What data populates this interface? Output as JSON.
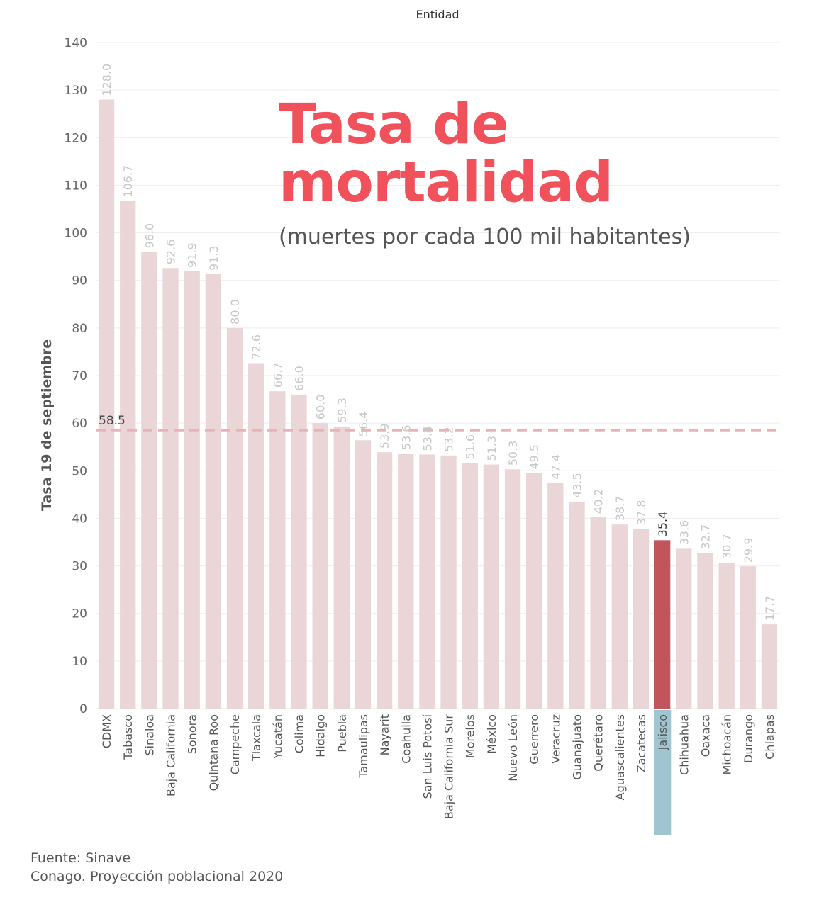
{
  "chart_data": {
    "type": "bar",
    "header": "Entidad",
    "ylabel": "Tasa 19 de septiembre",
    "ylim": [
      0,
      140
    ],
    "yticks": [
      0,
      10,
      20,
      30,
      40,
      50,
      60,
      70,
      80,
      90,
      100,
      110,
      120,
      130,
      140
    ],
    "grid": true,
    "categories": [
      "CDMX",
      "Tabasco",
      "Sinaloa",
      "Baja California",
      "Sonora",
      "Quintana Roo",
      "Campeche",
      "Tlaxcala",
      "Yucatán",
      "Colima",
      "Hidalgo",
      "Puebla",
      "Tamaulipas",
      "Nayarit",
      "Coahuila",
      "San Luis Potosí",
      "Baja California Sur",
      "Morelos",
      "México",
      "Nuevo León",
      "Guerrero",
      "Veracruz",
      "Guanajuato",
      "Querétaro",
      "Aguascalientes",
      "Zacatecas",
      "Jalisco",
      "Chihuahua",
      "Oaxaca",
      "Michoacán",
      "Durango",
      "Chiapas"
    ],
    "values": [
      128.0,
      106.7,
      96.0,
      92.6,
      91.9,
      91.3,
      80.0,
      72.6,
      66.7,
      66.0,
      60.0,
      59.3,
      56.4,
      53.9,
      53.6,
      53.4,
      53.2,
      51.6,
      51.3,
      50.3,
      49.5,
      47.4,
      43.5,
      40.2,
      38.7,
      37.8,
      35.4,
      33.6,
      32.7,
      30.7,
      29.9,
      17.7
    ],
    "value_labels": [
      "128.0",
      "106.7",
      "96.0",
      "92.6",
      "91.9",
      "91.3",
      "80.0",
      "72.6",
      "66.7",
      "66.0",
      "60.0",
      "59.3",
      "56.4",
      "53.9",
      "53.6",
      "53.4",
      "53.2",
      "51.6",
      "51.3",
      "50.3",
      "49.5",
      "47.4",
      "43.5",
      "40.2",
      "38.7",
      "37.8",
      "35.4",
      "33.6",
      "32.7",
      "30.7",
      "29.9",
      "17.7"
    ],
    "highlight": "Jalisco",
    "reference_line": {
      "value": 58.5,
      "label": "58.5"
    },
    "colors": {
      "bar": "#ead5d7",
      "highlight_bar": "#c2545c",
      "highlight_label_bg": "#9fc5d1",
      "reference_line": "#e9b3b6",
      "value_label": "#c8c8c8",
      "highlight_value_label": "#333333",
      "grid": "#eeeeee"
    }
  },
  "title": {
    "line1": "Tasa de",
    "line2": "mortalidad",
    "subtitle": "(muertes por cada 100 mil habitantes)"
  },
  "source": {
    "line1": "Fuente: Sinave",
    "line2": "Conago. Proyección poblacional 2020"
  }
}
